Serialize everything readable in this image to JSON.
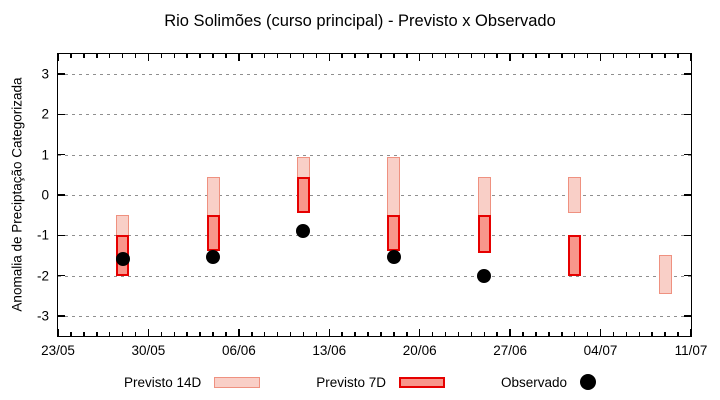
{
  "chart_data": {
    "type": "bar",
    "title": "Rio Solimões (curso principal) - Previsto x Observado",
    "ylabel": "Anomalia de Preciptação Categorizada",
    "ylim": [
      -3.5,
      3.5
    ],
    "y_ticks": [
      3,
      2,
      1,
      0,
      -1,
      -2,
      -3
    ],
    "x_tick_labels": [
      "23/05",
      "30/05",
      "06/06",
      "13/06",
      "20/06",
      "27/06",
      "04/07",
      "11/07"
    ],
    "x_tick_days": [
      0,
      7,
      14,
      21,
      28,
      35,
      42,
      49
    ],
    "x_total_days": 49,
    "grid": "dotted",
    "legend_position": "bottom",
    "series": [
      {
        "name": "Previsto 14D",
        "type": "range-bar",
        "color_fill": "#f9cfc7",
        "color_border": "#ef9180"
      },
      {
        "name": "Previsto 7D",
        "type": "range-bar",
        "color_fill": "#f8968b",
        "color_border": "#e60000"
      },
      {
        "name": "Observado",
        "type": "scatter",
        "color": "#000000"
      }
    ],
    "groups": [
      {
        "date": "28/05",
        "day": 5,
        "previsto_14d": [
          -2.0,
          -0.5
        ],
        "previsto_7d": [
          -2.0,
          -1.0
        ],
        "observado": -1.6
      },
      {
        "date": "04/06",
        "day": 12,
        "previsto_14d": [
          -1.4,
          0.45
        ],
        "previsto_7d": [
          -1.4,
          -0.5
        ],
        "observado": -1.55
      },
      {
        "date": "11/06",
        "day": 19,
        "previsto_14d": [
          -0.45,
          0.95
        ],
        "previsto_7d": [
          -0.45,
          0.45
        ],
        "observado": -0.9
      },
      {
        "date": "18/06",
        "day": 26,
        "previsto_14d": [
          -1.4,
          0.95
        ],
        "previsto_7d": [
          -1.4,
          -0.5
        ],
        "observado": -1.55
      },
      {
        "date": "25/06",
        "day": 33,
        "previsto_14d": [
          -1.45,
          0.45
        ],
        "previsto_7d": [
          -1.45,
          -0.5
        ],
        "observado": -2.0
      },
      {
        "date": "02/07",
        "day": 40,
        "previsto_14d": [
          -0.45,
          0.45
        ],
        "previsto_7d": [
          -2.0,
          -1.0
        ],
        "observado": null
      },
      {
        "date": "09/07",
        "day": 47,
        "previsto_14d": [
          -2.45,
          -1.5
        ],
        "previsto_7d": null,
        "observado": null
      }
    ],
    "legend": [
      {
        "label": "Previsto 14D"
      },
      {
        "label": "Previsto 7D"
      },
      {
        "label": "Observado"
      }
    ]
  }
}
